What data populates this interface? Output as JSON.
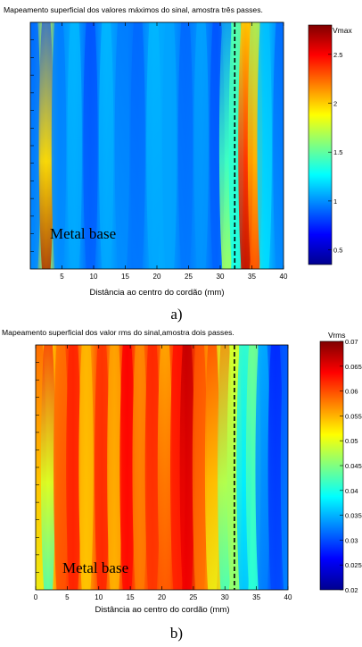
{
  "colormap": {
    "name": "jet",
    "stops": [
      "#00008f",
      "#0000ff",
      "#0080ff",
      "#00ffff",
      "#80ff80",
      "#ffff00",
      "#ff8000",
      "#ff0000",
      "#800000"
    ]
  },
  "chart_data": [
    {
      "type": "heatmap",
      "title": "Mapeamento superficial dos valores máximos do sinal, amostra três passes.",
      "xlabel": "Distância ao centro do cordão (mm)",
      "ylabel": "",
      "xlim": [
        0,
        40
      ],
      "x_ticks": [
        "5",
        "10",
        "15",
        "20",
        "25",
        "30",
        "35",
        "40"
      ],
      "colorbar": {
        "label": "Vmax",
        "range": [
          0.35,
          2.8
        ],
        "ticks": [
          "0.5",
          "1",
          "1.5",
          "2",
          "2.5"
        ]
      },
      "annotation": "Metal base",
      "dashed_line_x": 32.3,
      "caption": "a)",
      "columns": [
        {
          "x": 0.5,
          "top": 0.9,
          "bottom": 1.0
        },
        {
          "x": 2.5,
          "top": 0.85,
          "bottom": 2.75
        },
        {
          "x": 4.5,
          "top": 0.95,
          "bottom": 1.0
        },
        {
          "x": 7.0,
          "top": 1.1,
          "bottom": 1.05
        },
        {
          "x": 9.5,
          "top": 0.85,
          "bottom": 0.9
        },
        {
          "x": 12.0,
          "top": 1.1,
          "bottom": 1.05
        },
        {
          "x": 14.5,
          "top": 0.95,
          "bottom": 1.0
        },
        {
          "x": 17.0,
          "top": 0.9,
          "bottom": 0.95
        },
        {
          "x": 19.5,
          "top": 1.1,
          "bottom": 1.05
        },
        {
          "x": 22.0,
          "top": 1.05,
          "bottom": 1.05
        },
        {
          "x": 24.5,
          "top": 0.9,
          "bottom": 0.95
        },
        {
          "x": 27.0,
          "top": 1.05,
          "bottom": 1.0
        },
        {
          "x": 29.5,
          "top": 0.85,
          "bottom": 0.9
        },
        {
          "x": 31.0,
          "top": 0.95,
          "bottom": 1.75
        },
        {
          "x": 32.5,
          "top": 1.5,
          "bottom": 1.3
        },
        {
          "x": 34.0,
          "top": 1.9,
          "bottom": 2.7
        },
        {
          "x": 35.5,
          "top": 1.6,
          "bottom": 2.4
        },
        {
          "x": 37.0,
          "top": 1.1,
          "bottom": 1.2
        },
        {
          "x": 39.5,
          "top": 0.9,
          "bottom": 1.0
        }
      ]
    },
    {
      "type": "heatmap",
      "title": "Mapeamento superficial dos valor rms do sinal,amostra dois passes.",
      "xlabel": "Distância ao centro do cordão (mm)",
      "ylabel": "",
      "xlim": [
        0,
        40
      ],
      "x_ticks": [
        "0",
        "5",
        "10",
        "15",
        "20",
        "25",
        "30",
        "35",
        "40"
      ],
      "colorbar": {
        "label": "Vrms",
        "range": [
          0.02,
          0.07
        ],
        "ticks": [
          "0.07",
          "0.065",
          "0.06",
          "0.055",
          "0.05",
          "0.045",
          "0.04",
          "0.035",
          "0.03",
          "0.025",
          "0.02"
        ]
      },
      "annotation": "Metal base",
      "dashed_line_x": 31.5,
      "caption": "b)",
      "columns": [
        {
          "x": 0.5,
          "top": 0.06,
          "bottom": 0.05
        },
        {
          "x": 2.0,
          "top": 0.063,
          "bottom": 0.04
        },
        {
          "x": 4.0,
          "top": 0.058,
          "bottom": 0.06
        },
        {
          "x": 6.0,
          "top": 0.062,
          "bottom": 0.062
        },
        {
          "x": 8.0,
          "top": 0.055,
          "bottom": 0.054
        },
        {
          "x": 10.5,
          "top": 0.061,
          "bottom": 0.062
        },
        {
          "x": 12.5,
          "top": 0.056,
          "bottom": 0.055
        },
        {
          "x": 14.5,
          "top": 0.064,
          "bottom": 0.063
        },
        {
          "x": 16.5,
          "top": 0.057,
          "bottom": 0.058
        },
        {
          "x": 18.5,
          "top": 0.062,
          "bottom": 0.061
        },
        {
          "x": 20.5,
          "top": 0.055,
          "bottom": 0.06
        },
        {
          "x": 22.5,
          "top": 0.063,
          "bottom": 0.062
        },
        {
          "x": 24.0,
          "top": 0.067,
          "bottom": 0.064
        },
        {
          "x": 26.0,
          "top": 0.06,
          "bottom": 0.058
        },
        {
          "x": 28.0,
          "top": 0.061,
          "bottom": 0.05
        },
        {
          "x": 30.0,
          "top": 0.058,
          "bottom": 0.04
        },
        {
          "x": 31.5,
          "top": 0.05,
          "bottom": 0.045
        },
        {
          "x": 33.0,
          "top": 0.042,
          "bottom": 0.035
        },
        {
          "x": 34.5,
          "top": 0.045,
          "bottom": 0.04
        },
        {
          "x": 36.0,
          "top": 0.035,
          "bottom": 0.032
        },
        {
          "x": 38.0,
          "top": 0.028,
          "bottom": 0.03
        },
        {
          "x": 40.0,
          "top": 0.03,
          "bottom": 0.033
        }
      ]
    }
  ]
}
